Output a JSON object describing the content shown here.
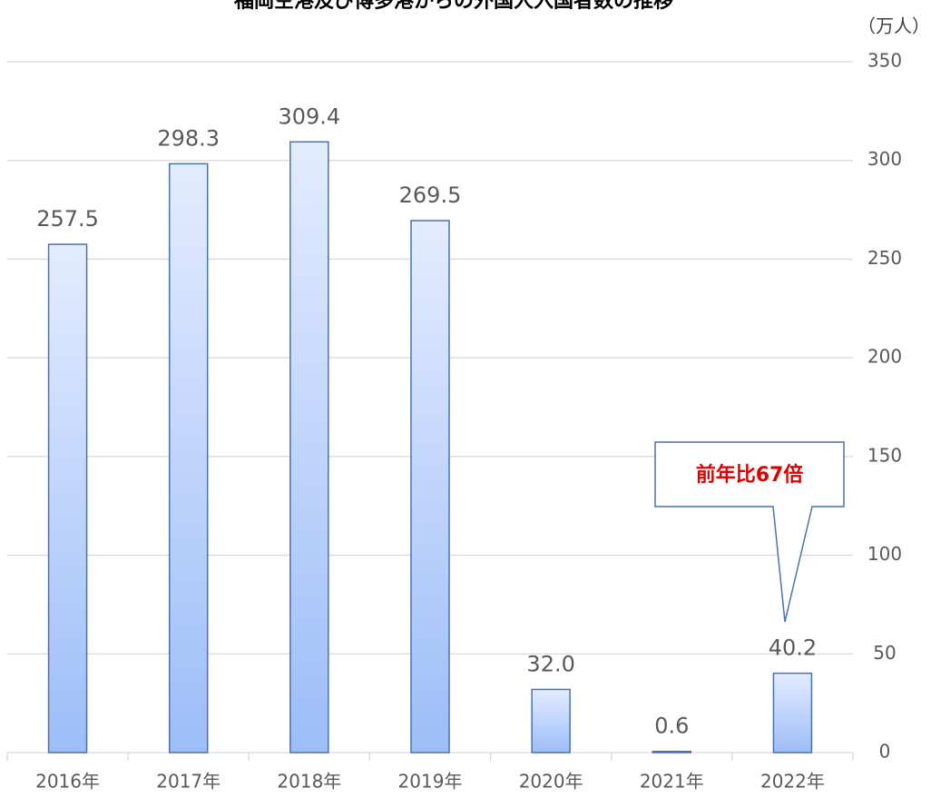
{
  "chart_data": {
    "type": "bar",
    "title": "福岡空港及び博多港からの外国人入国者数の推移",
    "y_axis_label": "（万人）",
    "categories": [
      "2016年",
      "2017年",
      "2018年",
      "2019年",
      "2020年",
      "2021年",
      "2022年"
    ],
    "values": [
      257.5,
      298.3,
      309.4,
      269.5,
      32.0,
      0.6,
      40.2
    ],
    "value_labels": [
      "257.5",
      "298.3",
      "309.4",
      "269.5",
      "32.0",
      "0.6",
      "40.2"
    ],
    "color": "#9dbdf7",
    "ylim": [
      0,
      350
    ],
    "yticks": [
      0,
      50,
      100,
      150,
      200,
      250,
      300,
      350
    ],
    "grid": true,
    "annotations": [
      {
        "text": "前年比67倍"
      }
    ]
  }
}
